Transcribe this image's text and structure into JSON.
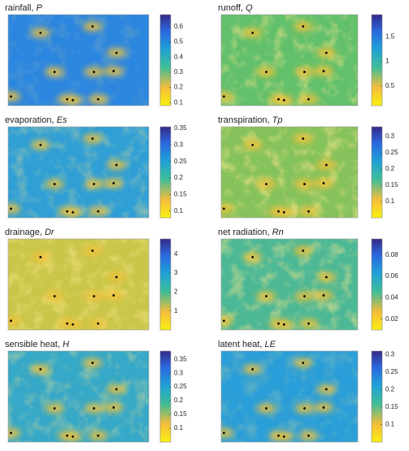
{
  "chart_data": [
    {
      "type": "heatmap",
      "title": "rainfall,",
      "symbol": "P",
      "zlim": [
        0.08,
        0.68
      ],
      "zticks": [
        0.1,
        0.2,
        0.3,
        0.4,
        0.5,
        0.6
      ]
    },
    {
      "type": "heatmap",
      "title": "runoff,",
      "symbol": "Q",
      "zlim": [
        0.1,
        1.95
      ],
      "zticks": [
        0.5,
        1,
        1.5
      ]
    },
    {
      "type": "heatmap",
      "title": "evaporation,",
      "symbol": "Es",
      "zlim": [
        0.08,
        0.355
      ],
      "zticks": [
        0.1,
        0.15,
        0.2,
        0.25,
        0.3,
        0.35
      ]
    },
    {
      "type": "heatmap",
      "title": "transpiration,",
      "symbol": "Tp",
      "zlim": [
        0.05,
        0.33
      ],
      "zticks": [
        0.1,
        0.15,
        0.2,
        0.25,
        0.3
      ]
    },
    {
      "type": "heatmap",
      "title": "drainage,",
      "symbol": "Dr",
      "zlim": [
        0,
        4.8
      ],
      "zticks": [
        1,
        2,
        3,
        4
      ]
    },
    {
      "type": "heatmap",
      "title": "net radiation,",
      "symbol": "Rn",
      "zlim": [
        0.01,
        0.095
      ],
      "zticks": [
        0.02,
        0.04,
        0.06,
        0.08
      ]
    },
    {
      "type": "heatmap",
      "title": "sensible heat,",
      "symbol": "H",
      "zlim": [
        0.05,
        0.38
      ],
      "zticks": [
        0.1,
        0.15,
        0.2,
        0.25,
        0.3,
        0.35
      ]
    },
    {
      "type": "heatmap",
      "title": "latent heat,",
      "symbol": "LE",
      "zlim": [
        0.05,
        0.31
      ],
      "zticks": [
        0.1,
        0.15,
        0.2,
        0.25,
        0.3
      ]
    }
  ]
}
